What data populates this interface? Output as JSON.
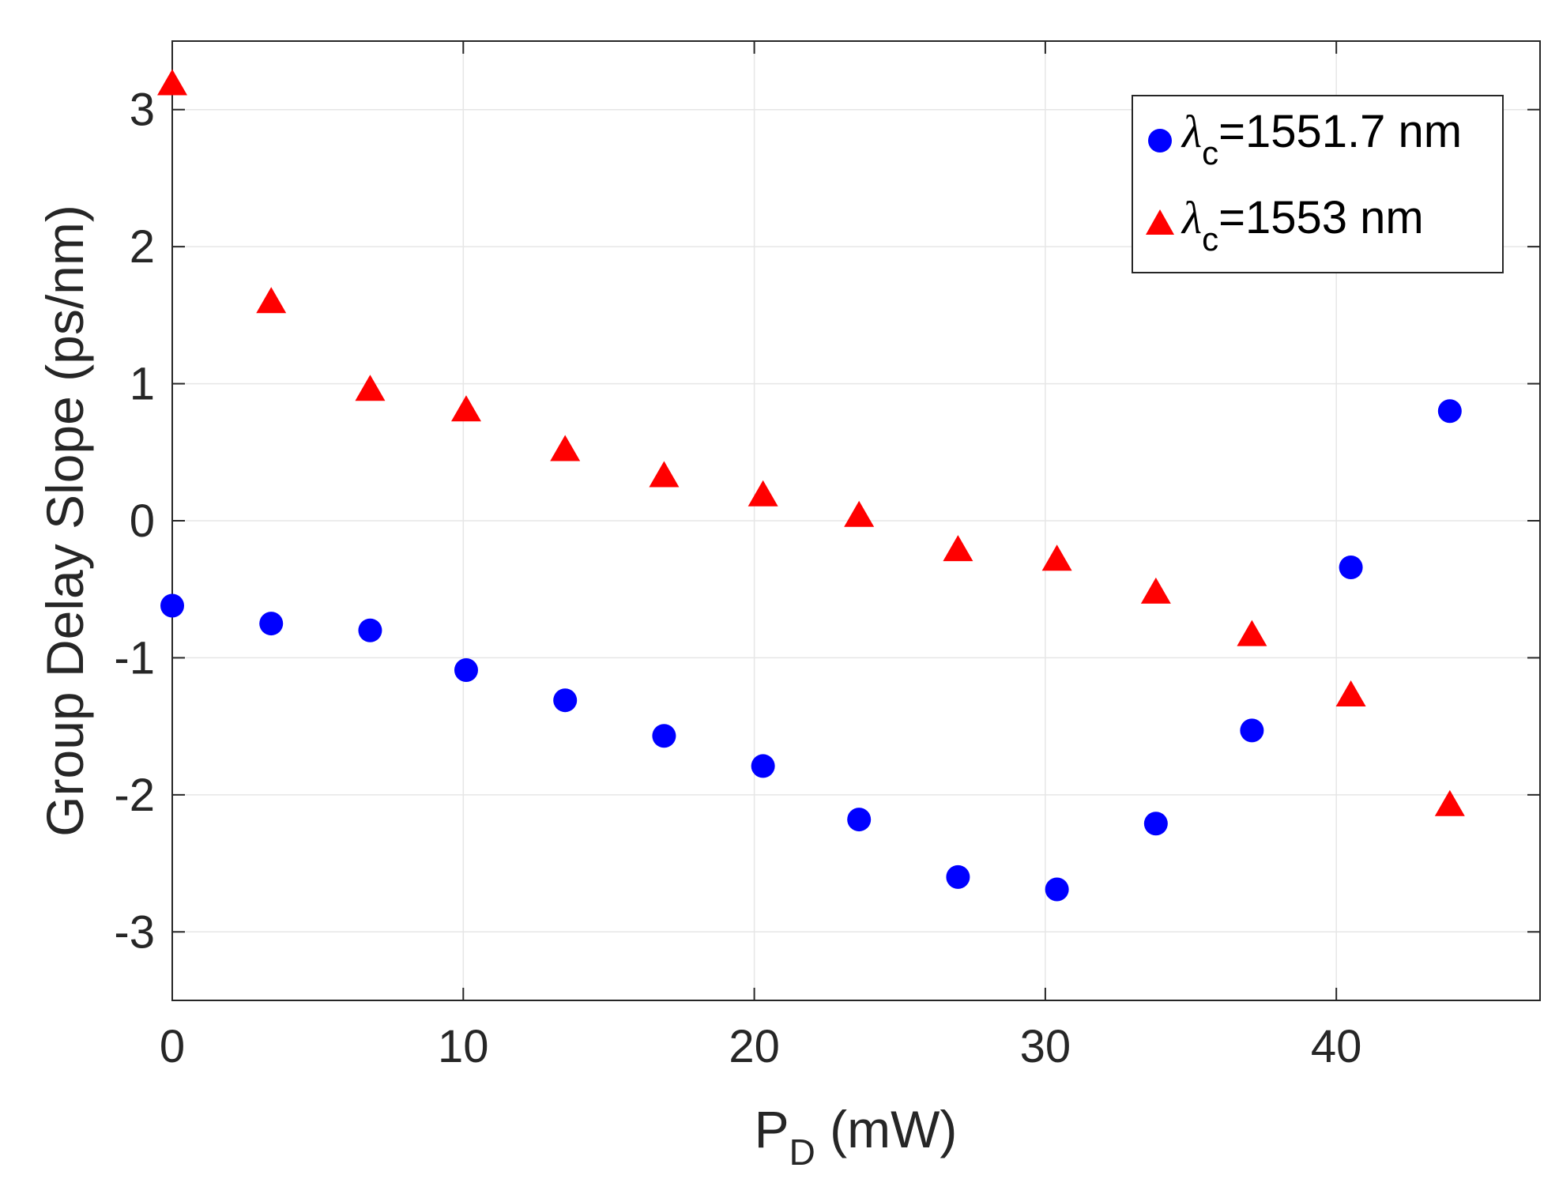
{
  "chart_data": {
    "type": "scatter",
    "title": "",
    "xlabel": {
      "main": "P",
      "sub": "D",
      "unit": " (mW)"
    },
    "ylabel": "Group Delay Slope (ps/nm)",
    "xlim": [
      0,
      47
    ],
    "ylim": [
      -3.5,
      3.5
    ],
    "x_ticks": [
      0,
      10,
      20,
      30,
      40
    ],
    "y_ticks": [
      -3,
      -2,
      -1,
      0,
      1,
      2,
      3
    ],
    "grid": true,
    "legend_position": "top-right",
    "series": [
      {
        "name": "λc=1551.7 nm",
        "legend_symbol": "λ",
        "legend_sub": "c",
        "legend_value": "=1551.7 nm",
        "marker": "circle",
        "color": "#0000ff",
        "x": [
          0,
          3.4,
          6.8,
          10.1,
          13.5,
          16.9,
          20.3,
          23.6,
          27.0,
          30.4,
          33.8,
          37.1,
          40.5,
          43.9
        ],
        "y": [
          -0.62,
          -0.75,
          -0.8,
          -1.09,
          -1.31,
          -1.57,
          -1.79,
          -2.18,
          -2.6,
          -2.69,
          -2.21,
          -1.53,
          -0.34,
          0.8
        ]
      },
      {
        "name": "λc=1553 nm",
        "legend_symbol": "λ",
        "legend_sub": "c",
        "legend_value": "=1553 nm",
        "marker": "triangle",
        "color": "#ff0000",
        "x": [
          0,
          3.4,
          6.8,
          10.1,
          13.5,
          16.9,
          20.3,
          23.6,
          27.0,
          30.4,
          33.8,
          37.1,
          40.5,
          43.9
        ],
        "y": [
          3.18,
          1.59,
          0.95,
          0.8,
          0.51,
          0.32,
          0.18,
          0.03,
          -0.22,
          -0.29,
          -0.53,
          -0.84,
          -1.28,
          -2.08
        ]
      }
    ]
  }
}
